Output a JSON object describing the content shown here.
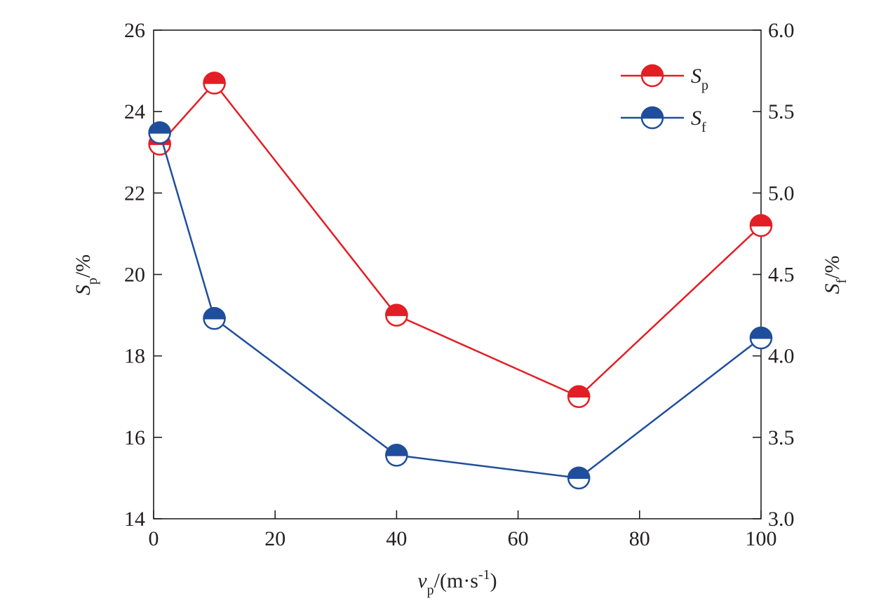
{
  "chart_data": {
    "type": "line",
    "xlabel": {
      "base": "v",
      "sub": "p",
      "rest": "/(m·s",
      "sup": "-1",
      "close": ")"
    },
    "ylabel_left": {
      "base": "S",
      "sub": "p",
      "rest": "/%"
    },
    "ylabel_right": {
      "base": "S",
      "sub": "f",
      "rest": "/%"
    },
    "xlim": [
      0,
      100
    ],
    "ylim_left": [
      14,
      26
    ],
    "ylim_right": [
      3.0,
      6.0
    ],
    "x_ticks": [
      "0",
      "20",
      "40",
      "60",
      "80",
      "100"
    ],
    "y_left_ticks": [
      "14",
      "16",
      "18",
      "20",
      "22",
      "24",
      "26"
    ],
    "y_right_ticks": [
      "3.0",
      "3.5",
      "4.0",
      "4.5",
      "5.0",
      "5.5",
      "6.0"
    ],
    "grid": false,
    "legend_position": "top-right",
    "series": [
      {
        "name": "S",
        "name_sub": "p",
        "axis": "left",
        "color": "#e31e24",
        "x": [
          1,
          10,
          40,
          70,
          100
        ],
        "y": [
          23.2,
          24.7,
          19.0,
          17.0,
          21.2
        ]
      },
      {
        "name": "S",
        "name_sub": "f",
        "axis": "right",
        "color": "#1f4e9c",
        "x": [
          1,
          10,
          40,
          70,
          100
        ],
        "y": [
          5.37,
          4.23,
          3.39,
          3.25,
          4.11
        ]
      }
    ]
  }
}
